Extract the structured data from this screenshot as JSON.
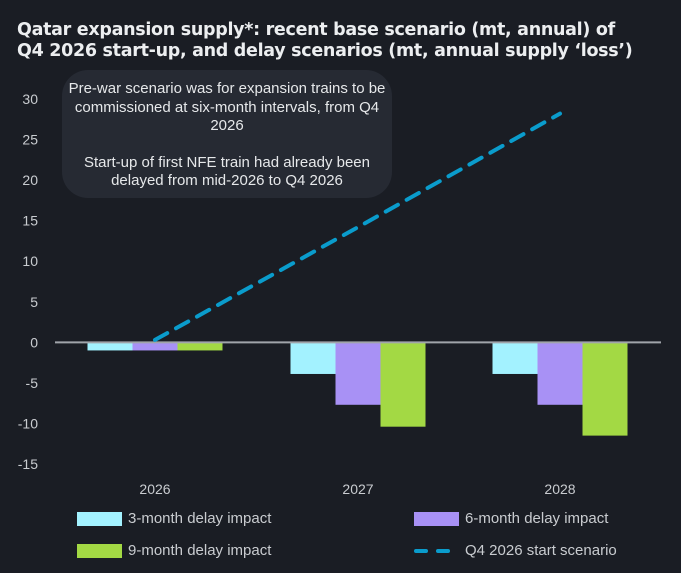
{
  "title_lines": [
    "Qatar expansion supply*: recent base scenario (mt, annual) of",
    "Q4 2026 start-up, and delay scenarios (mt, annual supply ‘loss’)"
  ],
  "annotation": {
    "paragraph1": "Pre-war scenario was for expansion trains to be commissioned at six-month intervals, from Q4 2026",
    "paragraph2": "Start-up of first NFE train had already been delayed from mid-2026 to Q4 2026"
  },
  "colors": {
    "background": "#1a1d24",
    "three_month": "#a3f2ff",
    "six_month": "#a891f5",
    "nine_month": "#a3d944",
    "line": "#0a9ccc",
    "zero_line": "#a0a4aa",
    "axis_text": "#c9ccd0"
  },
  "chart_data": {
    "type": "bar",
    "title": "Qatar expansion supply*: recent base scenario (mt, annual) of Q4 2026 start-up, and delay scenarios (mt, annual supply ‘loss’)",
    "xlabel": "",
    "ylabel": "",
    "categories": [
      "2026",
      "2027",
      "2028"
    ],
    "ylim": [
      -15,
      30
    ],
    "yticks": [
      30,
      25,
      20,
      15,
      10,
      5,
      0,
      -5,
      -10,
      -15
    ],
    "grid": false,
    "legend_position": "bottom",
    "series": [
      {
        "name": "3-month delay impact",
        "type": "bar",
        "color_key": "three_month",
        "values": [
          -1.0,
          -3.9,
          -3.9
        ]
      },
      {
        "name": "6-month delay impact",
        "type": "bar",
        "color_key": "six_month",
        "values": [
          -1.0,
          -7.7,
          -7.7
        ]
      },
      {
        "name": "9-month delay impact",
        "type": "bar",
        "color_key": "nine_month",
        "values": [
          -1.0,
          -10.4,
          -11.5
        ]
      },
      {
        "name": "Q4 2026 start scenario",
        "type": "line",
        "style": "dashed",
        "color_key": "line",
        "values": [
          0.3,
          14.2,
          28.2
        ]
      }
    ]
  },
  "legend": [
    {
      "label": "3-month delay impact",
      "kind": "swatch",
      "color_key": "three_month"
    },
    {
      "label": "6-month delay impact",
      "kind": "swatch",
      "color_key": "six_month"
    },
    {
      "label": "9-month delay impact",
      "kind": "swatch",
      "color_key": "nine_month"
    },
    {
      "label": "Q4 2026 start scenario",
      "kind": "dashed-line",
      "color_key": "line"
    }
  ]
}
